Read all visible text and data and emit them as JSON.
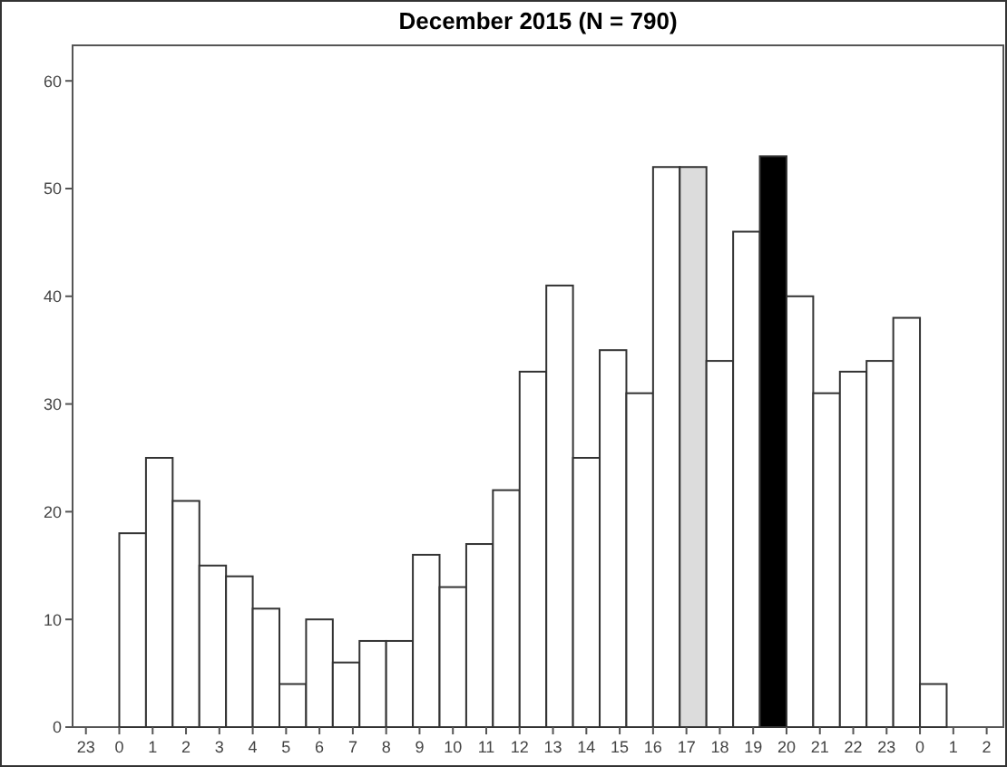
{
  "chart_data": {
    "type": "histogram",
    "title": "December 2015 (N = 790)",
    "bins": [
      "2015-12-01T00:00",
      "2015-12-01T00:48",
      "2015-12-01T01:36",
      "2015-12-01T02:24",
      "2015-12-01T03:12",
      "2015-12-01T04:00",
      "2015-12-01T04:48",
      "2015-12-01T05:36",
      "2015-12-01T06:24",
      "2015-12-01T07:12",
      "2015-12-01T08:00",
      "2015-12-01T08:48",
      "2015-12-01T09:36",
      "2015-12-01T10:24",
      "2015-12-01T11:12",
      "2015-12-01T12:00",
      "2015-12-01T12:48",
      "2015-12-01T13:36",
      "2015-12-01T14:24",
      "2015-12-01T15:12",
      "2015-12-01T16:00",
      "2015-12-01T16:48",
      "2015-12-01T17:36",
      "2015-12-01T18:24",
      "2015-12-01T19:12",
      "2015-12-01T20:00",
      "2015-12-01T20:48",
      "2015-12-01T21:36",
      "2015-12-01T22:24",
      "2015-12-01T23:12",
      "2015-12-02T00:00",
      "2015-12-02T00:48"
    ],
    "values": [
      18,
      25,
      21,
      15,
      14,
      11,
      4,
      10,
      6,
      8,
      8,
      16,
      13,
      17,
      22,
      33,
      41,
      25,
      35,
      31,
      52,
      52,
      34,
      46,
      53,
      40,
      31,
      33,
      34,
      38,
      4
    ],
    "colors": [
      "#ffffff",
      "#ffffff",
      "#ffffff",
      "#ffffff",
      "#ffffff",
      "#ffffff",
      "#ffffff",
      "#ffffff",
      "#ffffff",
      "#ffffff",
      "#ffffff",
      "#ffffff",
      "#ffffff",
      "#ffffff",
      "#ffffff",
      "#ffffff",
      "#ffffff",
      "#ffffff",
      "#ffffff",
      "#ffffff",
      "#ffffff",
      "#dcdcdc",
      "#ffffff",
      "#ffffff",
      "#000000",
      "#ffffff",
      "#ffffff",
      "#ffffff",
      "#ffffff",
      "#ffffff",
      "#ffffff"
    ],
    "xlim": [
      "2015-11-30T22:36",
      "2015-12-02T02:30"
    ],
    "xticks": [
      {
        "value": "2015-11-30T23:00",
        "label": "23"
      },
      {
        "value": "2015-12-01T00:00",
        "label": "0"
      },
      {
        "value": "2015-12-01T01:00",
        "label": "1"
      },
      {
        "value": "2015-12-01T02:00",
        "label": "2"
      },
      {
        "value": "2015-12-01T03:00",
        "label": "3"
      },
      {
        "value": "2015-12-01T04:00",
        "label": "4"
      },
      {
        "value": "2015-12-01T05:00",
        "label": "5"
      },
      {
        "value": "2015-12-01T06:00",
        "label": "6"
      },
      {
        "value": "2015-12-01T07:00",
        "label": "7"
      },
      {
        "value": "2015-12-01T08:00",
        "label": "8"
      },
      {
        "value": "2015-12-01T09:00",
        "label": "9"
      },
      {
        "value": "2015-12-01T10:00",
        "label": "10"
      },
      {
        "value": "2015-12-01T11:00",
        "label": "11"
      },
      {
        "value": "2015-12-01T12:00",
        "label": "12"
      },
      {
        "value": "2015-12-01T13:00",
        "label": "13"
      },
      {
        "value": "2015-12-01T14:00",
        "label": "14"
      },
      {
        "value": "2015-12-01T15:00",
        "label": "15"
      },
      {
        "value": "2015-12-01T16:00",
        "label": "16"
      },
      {
        "value": "2015-12-01T17:00",
        "label": "17"
      },
      {
        "value": "2015-12-01T18:00",
        "label": "18"
      },
      {
        "value": "2015-12-01T19:00",
        "label": "19"
      },
      {
        "value": "2015-12-01T20:00",
        "label": "20"
      },
      {
        "value": "2015-12-01T21:00",
        "label": "21"
      },
      {
        "value": "2015-12-01T22:00",
        "label": "22"
      },
      {
        "value": "2015-12-01T23:00",
        "label": "23"
      },
      {
        "value": "2015-12-02T00:00",
        "label": "0"
      },
      {
        "value": "2015-12-02T01:00",
        "label": "1"
      },
      {
        "value": "2015-12-02T02:00",
        "label": "2"
      }
    ],
    "ylim": [
      0,
      63.3
    ],
    "yticks": [
      0,
      10,
      20,
      30,
      40,
      50,
      60
    ],
    "grid": false
  }
}
